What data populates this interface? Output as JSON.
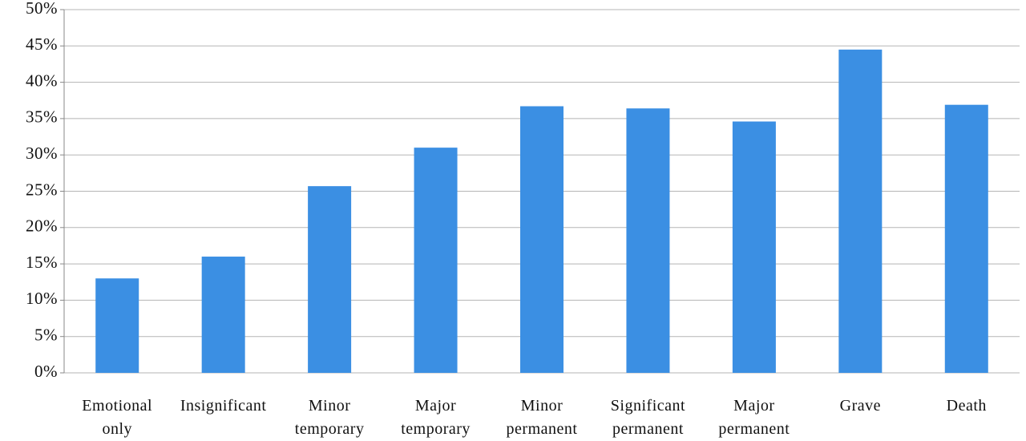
{
  "chart_data": {
    "type": "bar",
    "categories": [
      "Emotional only",
      "Insignificant",
      "Minor temporary",
      "Major temporary",
      "Minor permanent",
      "Significant permanent",
      "Major permanent",
      "Grave",
      "Death"
    ],
    "values": [
      13.0,
      16.0,
      25.7,
      31.0,
      36.7,
      36.4,
      34.6,
      44.5,
      36.9
    ],
    "color": "#3b8fe3",
    "ylim": [
      0,
      50
    ],
    "yticks": [
      {
        "value": 0,
        "label": "0%"
      },
      {
        "value": 5,
        "label": "5%"
      },
      {
        "value": 10,
        "label": "10%"
      },
      {
        "value": 15,
        "label": "15%"
      },
      {
        "value": 20,
        "label": "20%"
      },
      {
        "value": 25,
        "label": "25%"
      },
      {
        "value": 30,
        "label": "30%"
      },
      {
        "value": 35,
        "label": "35%"
      },
      {
        "value": 40,
        "label": "40%"
      },
      {
        "value": 45,
        "label": "45%"
      },
      {
        "value": 50,
        "label": "50%"
      }
    ],
    "grid": true
  }
}
